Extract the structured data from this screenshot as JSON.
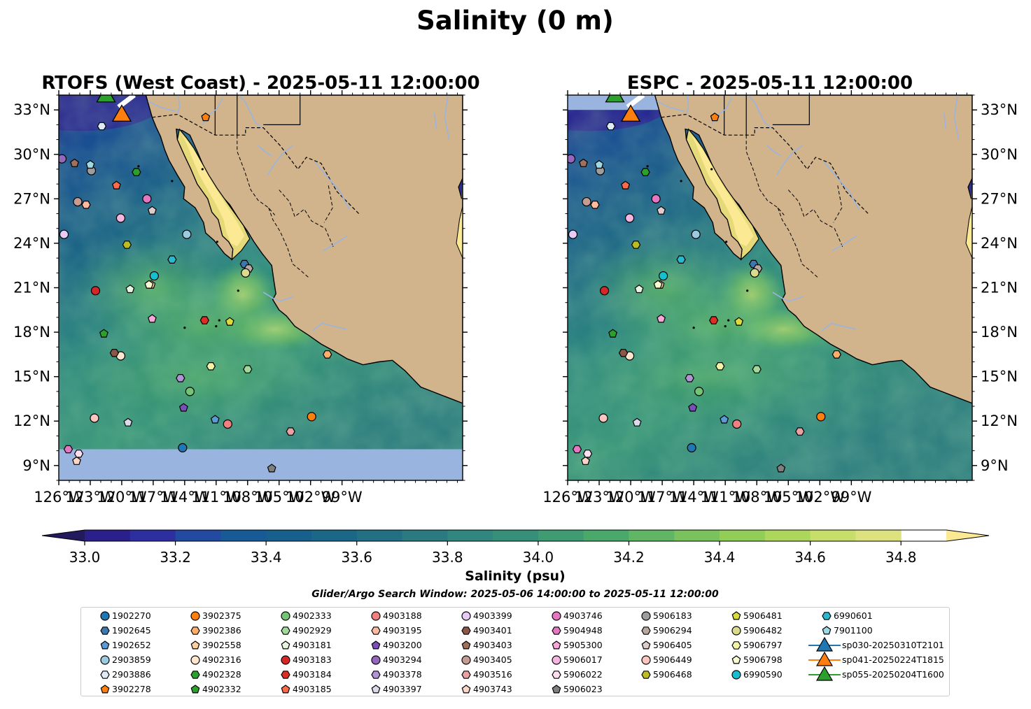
{
  "chart_data": {
    "type": "map",
    "title": "Salinity (0 m)",
    "panels": [
      {
        "title": "RTOFS (West Coast) - 2025-05-11 12:00:00",
        "ytick_side": "left"
      },
      {
        "title": "ESPC - 2025-05-11 12:00:00",
        "ytick_side": "right"
      }
    ],
    "extent": {
      "lon": [
        -126,
        -87.5
      ],
      "lat": [
        8,
        34
      ]
    },
    "xticks": [
      -126,
      -123,
      -120,
      -117,
      -114,
      -111,
      -108,
      -105,
      -102,
      -99
    ],
    "xtick_labels": [
      "126°W",
      "123°W",
      "120°W",
      "117°W",
      "114°W",
      "111°W",
      "108°W",
      "105°W",
      "102°W",
      "99°W"
    ],
    "yticks": [
      9,
      12,
      15,
      18,
      21,
      24,
      27,
      30,
      33
    ],
    "ytick_labels": [
      "9°N",
      "12°N",
      "15°N",
      "18°N",
      "21°N",
      "24°N",
      "27°N",
      "30°N",
      "33°N"
    ],
    "colorbar": {
      "label": "Salinity (psu)",
      "min": 32.9,
      "max": 35.0,
      "step": 0.1,
      "extend": "both",
      "ticks": [
        33.0,
        33.2,
        33.4,
        33.6,
        33.8,
        34.0,
        34.2,
        34.4,
        34.6,
        34.8
      ],
      "tick_labels": [
        "33.0",
        "33.2",
        "33.4",
        "33.6",
        "33.8",
        "34.0",
        "34.2",
        "34.4",
        "34.6",
        "34.8"
      ],
      "colors": [
        "#231a5e",
        "#2b1f8c",
        "#2d2fa0",
        "#214aa0",
        "#175a96",
        "#175f8d",
        "#1b6787",
        "#236f84",
        "#2b7a82",
        "#31867f",
        "#369079",
        "#3f9c72",
        "#4aa96a",
        "#60b664",
        "#79c25d",
        "#92cd57",
        "#acd65c",
        "#c7de6a",
        "#dde27f",
        "#fbe993"
      ]
    },
    "subtitle": "Glider/Argo Search Window: 2025-05-06 14:00:00 to 2025-05-11 12:00:00",
    "floats": [
      {
        "name": "1902270",
        "marker": "circle",
        "color": "#1f77b4",
        "lon": -114.2,
        "lat": 10.2
      },
      {
        "name": "1902645",
        "marker": "hexagon",
        "color": "#3b78b0",
        "lon": -108.3,
        "lat": 22.6
      },
      {
        "name": "1902652",
        "marker": "pentagon",
        "color": "#5b9bd5",
        "lon": -111.1,
        "lat": 12.1
      },
      {
        "name": "2903859",
        "marker": "circle",
        "color": "#9ecae1",
        "lon": -113.8,
        "lat": 24.6
      },
      {
        "name": "2903886",
        "marker": "hexagon",
        "color": "#deebf7",
        "lon": -121.9,
        "lat": 31.9
      },
      {
        "name": "3902278",
        "marker": "pentagon",
        "color": "#ff7f0e",
        "lon": -112.0,
        "lat": 32.5
      },
      {
        "name": "3902375",
        "marker": "circle",
        "color": "#ff7f0e",
        "lon": -101.9,
        "lat": 12.3
      },
      {
        "name": "3902386",
        "marker": "hexagon",
        "color": "#fdae6b",
        "lon": -100.4,
        "lat": 16.5
      },
      {
        "name": "3902558",
        "marker": "pentagon",
        "color": "#fdd0a2",
        "lon": -117.2,
        "lat": 21.2
      },
      {
        "name": "4902316",
        "marker": "circle",
        "color": "#fee6ce",
        "lon": -120.1,
        "lat": 16.4
      },
      {
        "name": "4902328",
        "marker": "hexagon",
        "color": "#2ca02c",
        "lon": -118.6,
        "lat": 28.8
      },
      {
        "name": "4902332",
        "marker": "pentagon",
        "color": "#2ca02c",
        "lon": -121.7,
        "lat": 17.9
      },
      {
        "name": "4902333",
        "marker": "circle",
        "color": "#74c476",
        "lon": -113.5,
        "lat": 14.0
      },
      {
        "name": "4902929",
        "marker": "hexagon",
        "color": "#a1d99b",
        "lon": -108.0,
        "lat": 15.5
      },
      {
        "name": "4903181",
        "marker": "pentagon",
        "color": "#e5f5e0",
        "lon": -119.2,
        "lat": 20.9
      },
      {
        "name": "4903183",
        "marker": "circle",
        "color": "#d62728",
        "lon": -122.5,
        "lat": 20.8
      },
      {
        "name": "4903184",
        "marker": "hexagon",
        "color": "#de2d26",
        "lon": -112.1,
        "lat": 18.8
      },
      {
        "name": "4903185",
        "marker": "pentagon",
        "color": "#fb6a4a",
        "lon": -120.5,
        "lat": 27.9
      },
      {
        "name": "4903188",
        "marker": "circle",
        "color": "#f08080",
        "lon": -109.9,
        "lat": 11.8
      },
      {
        "name": "4903195",
        "marker": "hexagon",
        "color": "#fcbba1",
        "lon": -123.4,
        "lat": 26.6
      },
      {
        "name": "4903200",
        "marker": "pentagon",
        "color": "#7b4fb8",
        "lon": -114.1,
        "lat": 12.9
      },
      {
        "name": "4903294",
        "marker": "circle",
        "color": "#9467bd",
        "lon": -125.7,
        "lat": 29.7
      },
      {
        "name": "4903378",
        "marker": "hexagon",
        "color": "#b294d6",
        "lon": -114.4,
        "lat": 14.9
      },
      {
        "name": "4903397",
        "marker": "pentagon",
        "color": "#dadaeb",
        "lon": -119.4,
        "lat": 11.9
      },
      {
        "name": "4903399",
        "marker": "circle",
        "color": "#e6ccf5",
        "lon": -125.5,
        "lat": 24.6
      },
      {
        "name": "4903401",
        "marker": "hexagon",
        "color": "#8c564b",
        "lon": -120.7,
        "lat": 16.6
      },
      {
        "name": "4903403",
        "marker": "pentagon",
        "color": "#a0705f",
        "lon": -124.5,
        "lat": 29.4
      },
      {
        "name": "4903405",
        "marker": "circle",
        "color": "#c49c94",
        "lon": -124.2,
        "lat": 26.8
      },
      {
        "name": "4903516",
        "marker": "hexagon",
        "color": "#e7a3a3",
        "lon": -103.9,
        "lat": 11.3
      },
      {
        "name": "4903743",
        "marker": "pentagon",
        "color": "#fcd5c9",
        "lon": -124.3,
        "lat": 9.3
      },
      {
        "name": "4903746",
        "marker": "circle",
        "color": "#e377c2",
        "lon": -117.6,
        "lat": 27.0
      },
      {
        "name": "5904948",
        "marker": "hexagon",
        "color": "#e377c2",
        "lon": -125.1,
        "lat": 10.1
      },
      {
        "name": "5905300",
        "marker": "pentagon",
        "color": "#f7a8d8",
        "lon": -117.1,
        "lat": 18.9
      },
      {
        "name": "5906017",
        "marker": "circle",
        "color": "#f4b6e0",
        "lon": -120.1,
        "lat": 25.7
      },
      {
        "name": "5906022",
        "marker": "hexagon",
        "color": "#fde0ef",
        "lon": -124.1,
        "lat": 9.8
      },
      {
        "name": "5906023",
        "marker": "pentagon",
        "color": "#7f7f7f",
        "lon": -105.7,
        "lat": 8.8
      },
      {
        "name": "5906183",
        "marker": "circle",
        "color": "#9d9d9d",
        "lon": -122.9,
        "lat": 28.9
      },
      {
        "name": "5906294",
        "marker": "hexagon",
        "color": "#b8a8a0",
        "lon": -107.9,
        "lat": 22.3
      },
      {
        "name": "5906405",
        "marker": "pentagon",
        "color": "#e0cccc",
        "lon": -117.1,
        "lat": 26.2
      },
      {
        "name": "5906449",
        "marker": "circle",
        "color": "#fcc5c0",
        "lon": -122.6,
        "lat": 12.2
      },
      {
        "name": "5906468",
        "marker": "hexagon",
        "color": "#bcbd22",
        "lon": -119.5,
        "lat": 23.9
      },
      {
        "name": "5906481",
        "marker": "pentagon",
        "color": "#dbdb3d",
        "lon": -109.7,
        "lat": 18.7
      },
      {
        "name": "5906482",
        "marker": "circle",
        "color": "#dbdb8d",
        "lon": -108.2,
        "lat": 22.0
      },
      {
        "name": "5906797",
        "marker": "hexagon",
        "color": "#f4f4a6",
        "lon": -111.5,
        "lat": 15.7
      },
      {
        "name": "5906798",
        "marker": "pentagon",
        "color": "#fafad0",
        "lon": -117.4,
        "lat": 21.2
      },
      {
        "name": "6990590",
        "marker": "circle",
        "color": "#17becf",
        "lon": -116.9,
        "lat": 21.8
      },
      {
        "name": "6990601",
        "marker": "hexagon",
        "color": "#2ab8cf",
        "lon": -115.2,
        "lat": 22.9
      },
      {
        "name": "7901100",
        "marker": "pentagon",
        "color": "#9edae5",
        "lon": -123.0,
        "lat": 29.3
      }
    ],
    "gliders": [
      {
        "name": "sp030-20250310T2101",
        "color": "#1f77b4",
        "lon": -118.5,
        "lat": 34.6
      },
      {
        "name": "sp041-20250224T1815",
        "color": "#ff7f0e",
        "lon": -120.0,
        "lat": 32.7
      },
      {
        "name": "sp055-20250204T1600",
        "color": "#2ca02c",
        "lon": -121.5,
        "lat": 34.0
      }
    ],
    "legend_columns": [
      [
        "1902270",
        "1902645",
        "1902652",
        "2903859",
        "2903886",
        "3902278"
      ],
      [
        "3902375",
        "3902386",
        "3902558",
        "4902316",
        "4902328",
        "4902332"
      ],
      [
        "4902333",
        "4902929",
        "4903181",
        "4903183",
        "4903184",
        "4903185"
      ],
      [
        "4903188",
        "4903195",
        "4903200",
        "4903294",
        "4903378",
        "4903397"
      ],
      [
        "4903399",
        "4903401",
        "4903403",
        "4903405",
        "4903516",
        "4903743"
      ],
      [
        "4903746",
        "5904948",
        "5905300",
        "5906017",
        "5906022",
        "5906023"
      ],
      [
        "5906183",
        "5906294",
        "5906405",
        "5906449",
        "5906468"
      ],
      [
        "5906481",
        "5906482",
        "5906797",
        "5906798",
        "6990590"
      ],
      [
        "6990601",
        "7901100",
        "sp030-20250310T2101",
        "sp041-20250224T1815",
        "sp055-20250204T1600"
      ]
    ]
  }
}
